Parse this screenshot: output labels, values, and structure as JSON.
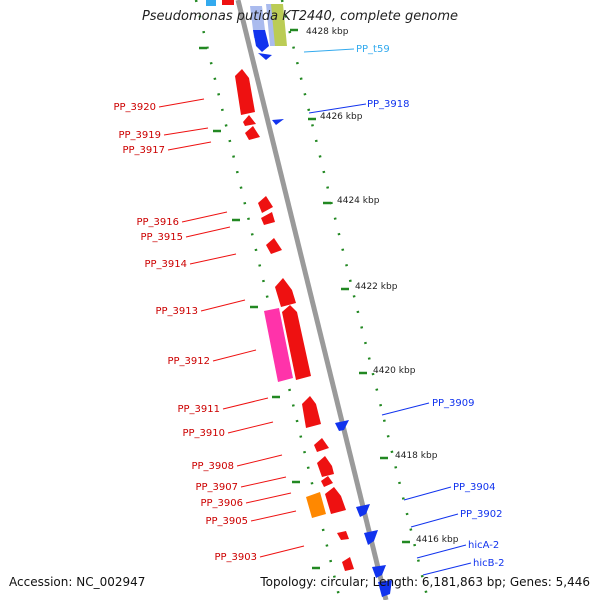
{
  "header": {
    "title": "Pseudomonas putida KT2440, complete genome"
  },
  "footer": {
    "accession": "Accession: NC_002947",
    "summary": "Topology: circular; Length: 6,181,863 bp; Genes: 5,446"
  },
  "colors": {
    "backbone": "#9a9a9a",
    "forward_gene": "#ee1111",
    "reverse_gene": "#1133ee",
    "rrna": "#ff33aa",
    "trna": "#33aaee",
    "misc_a": "#ff8800",
    "misc_b": "#bbcc55",
    "misc_c": "#aabbee",
    "tick": "#228822",
    "ruler_label": "#222222"
  },
  "ruler": [
    {
      "label": "4428 kbp"
    },
    {
      "label": "4426 kbp"
    },
    {
      "label": "4424 kbp"
    },
    {
      "label": "4422 kbp"
    },
    {
      "label": "4420 kbp"
    },
    {
      "label": "4418 kbp"
    },
    {
      "label": "4416 kbp"
    }
  ],
  "left_labels": [
    {
      "label": "PP_3920"
    },
    {
      "label": "PP_3919"
    },
    {
      "label": "PP_3917"
    },
    {
      "label": "PP_3916"
    },
    {
      "label": "PP_3915"
    },
    {
      "label": "PP_3914"
    },
    {
      "label": "PP_3913"
    },
    {
      "label": "PP_3912"
    },
    {
      "label": "PP_3911"
    },
    {
      "label": "PP_3910"
    },
    {
      "label": "PP_3908"
    },
    {
      "label": "PP_3907"
    },
    {
      "label": "PP_3906"
    },
    {
      "label": "PP_3905"
    },
    {
      "label": "PP_3903"
    }
  ],
  "right_labels": [
    {
      "label": "PP_t59"
    },
    {
      "label": "PP_3918"
    },
    {
      "label": "PP_3909"
    },
    {
      "label": "PP_3904"
    },
    {
      "label": "PP_3902"
    },
    {
      "label": "hicA-2"
    },
    {
      "label": "hicB-2"
    }
  ]
}
